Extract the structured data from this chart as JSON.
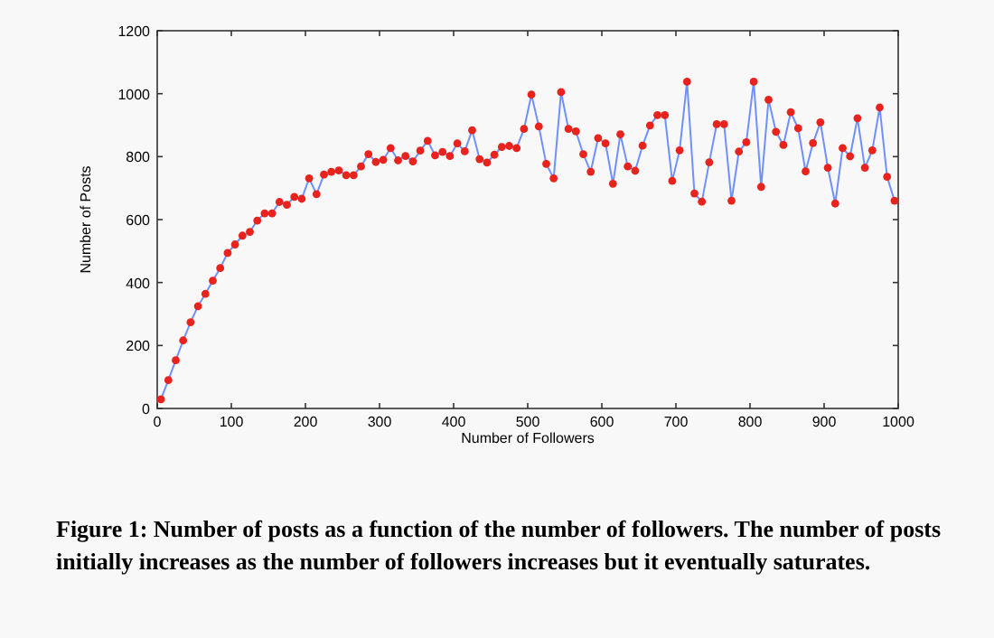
{
  "chart_data": {
    "type": "line",
    "xlabel": "Number of Followers",
    "ylabel": "Number of Posts",
    "annotations": [
      "Figure 1: Number of posts as a function of the number of followers. The number of posts initially increases as the number of followers increases but it eventually saturates."
    ],
    "x": [
      5,
      15,
      25,
      35,
      45,
      55,
      65,
      75,
      85,
      95,
      105,
      115,
      125,
      135,
      145,
      155,
      165,
      175,
      185,
      195,
      205,
      215,
      225,
      235,
      245,
      255,
      265,
      275,
      285,
      295,
      305,
      315,
      325,
      335,
      345,
      355,
      365,
      375,
      385,
      395,
      405,
      415,
      425,
      435,
      445,
      455,
      465,
      475,
      485,
      495,
      505,
      515,
      525,
      535,
      545,
      555,
      565,
      575,
      585,
      595,
      605,
      615,
      625,
      635,
      645,
      655,
      665,
      675,
      685,
      695,
      705,
      715,
      725,
      735,
      745,
      755,
      765,
      775,
      785,
      795,
      805,
      815,
      825,
      835,
      845,
      855,
      865,
      875,
      885,
      895,
      905,
      915,
      925,
      935,
      945,
      955,
      965,
      975,
      985,
      995
    ],
    "series": [
      {
        "color": "#7090ff",
        "values": [
          29,
          90,
          153,
          216,
          274,
          325,
          364,
          406,
          446,
          494,
          521,
          549,
          561,
          597,
          620,
          620,
          656,
          647,
          672,
          666,
          731,
          681,
          743,
          752,
          756,
          741,
          741,
          769,
          808,
          783,
          790,
          827,
          788,
          802,
          785,
          819,
          850,
          804,
          815,
          802,
          842,
          817,
          884,
          792,
          781,
          806,
          831,
          834,
          827,
          888,
          997,
          896,
          777,
          731,
          1005,
          888,
          880,
          808,
          752,
          859,
          842,
          714,
          871,
          769,
          755,
          835,
          899,
          932,
          932,
          723,
          820,
          1038,
          683,
          657,
          782,
          903,
          903,
          660,
          816,
          846,
          1038,
          704,
          981,
          879,
          837,
          941,
          890,
          753,
          843,
          909,
          765,
          651,
          827,
          801,
          922,
          765,
          820,
          956,
          736,
          660
        ]
      }
    ],
    "marker": "circle",
    "line_style": "solid",
    "xlim": [
      0,
      1000
    ],
    "xticks": [
      0,
      100,
      200,
      300,
      400,
      500,
      600,
      700,
      800,
      900,
      1000
    ],
    "ylim": [
      0,
      1200
    ],
    "yticks": [
      0,
      200,
      400,
      600,
      800,
      1000,
      1200
    ]
  }
}
